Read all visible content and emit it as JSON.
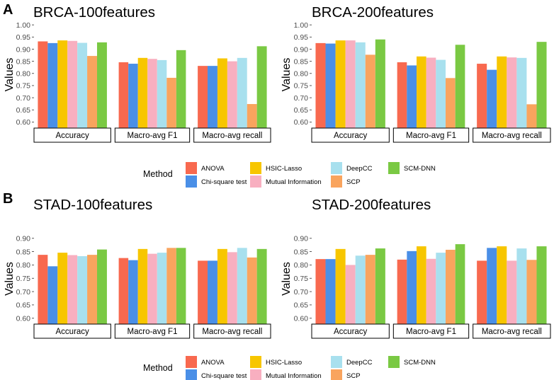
{
  "figure": {
    "panel_labels": [
      "A",
      "B"
    ],
    "legend": {
      "title": "Method",
      "items": [
        {
          "name": "ANOVA",
          "color": "#F8694F"
        },
        {
          "name": "Chi-square test",
          "color": "#4A8FE7"
        },
        {
          "name": "HSIC-Lasso",
          "color": "#F7C600"
        },
        {
          "name": "Mutual Information",
          "color": "#F8AFC0"
        },
        {
          "name": "DeepCC",
          "color": "#A8E0EE"
        },
        {
          "name": "SCP",
          "color": "#F9A45E"
        },
        {
          "name": "SCM-DNN",
          "color": "#7AC943"
        }
      ]
    }
  },
  "chart_data": [
    {
      "type": "bar",
      "panel": "A",
      "title": "BRCA-100features",
      "ylabel": "Values",
      "ylim": [
        0.575,
        1.015
      ],
      "yticks": [
        "0.60",
        "0.65",
        "0.70",
        "0.75",
        "0.80",
        "0.85",
        "0.90",
        "0.95",
        "1.00"
      ],
      "categories": [
        "Accuracy",
        "Macro-avg F1",
        "Macro-avg recall"
      ],
      "series": [
        {
          "name": "ANOVA",
          "values": [
            0.932,
            0.846,
            0.831
          ]
        },
        {
          "name": "Chi-square test",
          "values": [
            0.925,
            0.84,
            0.831
          ]
        },
        {
          "name": "HSIC-Lasso",
          "values": [
            0.936,
            0.864,
            0.862
          ]
        },
        {
          "name": "Mutual Information",
          "values": [
            0.934,
            0.86,
            0.85
          ]
        },
        {
          "name": "DeepCC",
          "values": [
            0.926,
            0.855,
            0.864
          ]
        },
        {
          "name": "SCP",
          "values": [
            0.872,
            0.782,
            0.674
          ]
        },
        {
          "name": "SCM-DNN",
          "values": [
            0.928,
            0.896,
            0.912
          ]
        }
      ]
    },
    {
      "type": "bar",
      "panel": "A",
      "title": "BRCA-200features",
      "ylabel": "Values",
      "ylim": [
        0.575,
        1.015
      ],
      "yticks": [
        "0.60",
        "0.65",
        "0.70",
        "0.75",
        "0.80",
        "0.85",
        "0.90",
        "0.95",
        "1.00"
      ],
      "categories": [
        "Accuracy",
        "Macro-avg F1",
        "Macro-avg recall"
      ],
      "series": [
        {
          "name": "ANOVA",
          "values": [
            0.925,
            0.846,
            0.84
          ]
        },
        {
          "name": "Chi-square test",
          "values": [
            0.923,
            0.833,
            0.815
          ]
        },
        {
          "name": "HSIC-Lasso",
          "values": [
            0.936,
            0.87,
            0.87
          ]
        },
        {
          "name": "Mutual Information",
          "values": [
            0.936,
            0.865,
            0.866
          ]
        },
        {
          "name": "DeepCC",
          "values": [
            0.928,
            0.856,
            0.864
          ]
        },
        {
          "name": "SCP",
          "values": [
            0.877,
            0.781,
            0.673
          ]
        },
        {
          "name": "SCM-DNN",
          "values": [
            0.94,
            0.918,
            0.93
          ]
        }
      ]
    },
    {
      "type": "bar",
      "panel": "B",
      "title": "STAD-100features",
      "ylabel": "Values",
      "ylim": [
        0.578,
        0.918
      ],
      "yticks": [
        "0.60",
        "0.65",
        "0.70",
        "0.75",
        "0.80",
        "0.85",
        "0.90"
      ],
      "categories": [
        "Accuracy",
        "Macro-avg F1",
        "Macro-avg recall"
      ],
      "series": [
        {
          "name": "ANOVA",
          "values": [
            0.838,
            0.826,
            0.816
          ]
        },
        {
          "name": "Chi-square test",
          "values": [
            0.795,
            0.818,
            0.816
          ]
        },
        {
          "name": "HSIC-Lasso",
          "values": [
            0.846,
            0.86,
            0.86
          ]
        },
        {
          "name": "Mutual Information",
          "values": [
            0.837,
            0.842,
            0.848
          ]
        },
        {
          "name": "DeepCC",
          "values": [
            0.833,
            0.846,
            0.864
          ]
        },
        {
          "name": "SCP",
          "values": [
            0.838,
            0.864,
            0.828
          ]
        },
        {
          "name": "SCM-DNN",
          "values": [
            0.858,
            0.864,
            0.86
          ]
        }
      ]
    },
    {
      "type": "bar",
      "panel": "B",
      "title": "STAD-200features",
      "ylabel": "Values",
      "ylim": [
        0.578,
        0.918
      ],
      "yticks": [
        "0.60",
        "0.65",
        "0.70",
        "0.75",
        "0.80",
        "0.85",
        "0.90"
      ],
      "categories": [
        "Accuracy",
        "Macro-avg F1",
        "Macro-avg recall"
      ],
      "series": [
        {
          "name": "ANOVA",
          "values": [
            0.822,
            0.82,
            0.816
          ]
        },
        {
          "name": "Chi-square test",
          "values": [
            0.822,
            0.852,
            0.864
          ]
        },
        {
          "name": "HSIC-Lasso",
          "values": [
            0.86,
            0.87,
            0.87
          ]
        },
        {
          "name": "Mutual Information",
          "values": [
            0.8,
            0.823,
            0.816
          ]
        },
        {
          "name": "DeepCC",
          "values": [
            0.835,
            0.846,
            0.862
          ]
        },
        {
          "name": "SCP",
          "values": [
            0.838,
            0.857,
            0.819
          ]
        },
        {
          "name": "SCM-DNN",
          "values": [
            0.862,
            0.878,
            0.87
          ]
        }
      ]
    }
  ]
}
